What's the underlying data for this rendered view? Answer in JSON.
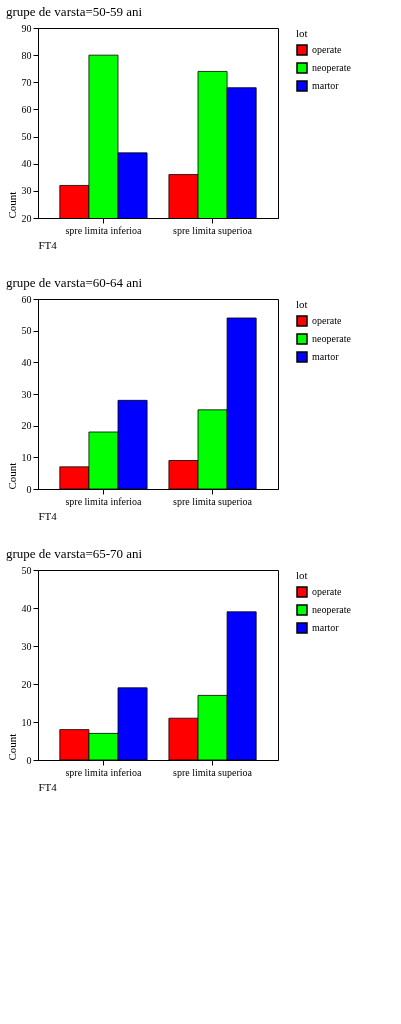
{
  "chart_data": [
    {
      "type": "bar",
      "title": "grupe de varsta=50-59 ani",
      "xlabel": "FT4",
      "ylabel": "Count",
      "legend_title": "lot",
      "legend": "right",
      "grid": false,
      "categories": [
        "spre limita inferioa",
        "spre limita superioa"
      ],
      "series": [
        {
          "name": "operate",
          "color": "#ff0000",
          "values": [
            32,
            36
          ]
        },
        {
          "name": "neoperate",
          "color": "#00ff00",
          "values": [
            80,
            74
          ]
        },
        {
          "name": "martor",
          "color": "#0000ff",
          "values": [
            44,
            68
          ]
        }
      ],
      "ylim": [
        20,
        90
      ],
      "yticks": [
        20,
        30,
        40,
        50,
        60,
        70,
        80,
        90
      ]
    },
    {
      "type": "bar",
      "title": "grupe de varsta=60-64 ani",
      "xlabel": "FT4",
      "ylabel": "Count",
      "legend_title": "lot",
      "legend": "right",
      "grid": false,
      "categories": [
        "spre limita inferioa",
        "spre limita superioa"
      ],
      "series": [
        {
          "name": "operate",
          "color": "#ff0000",
          "values": [
            7,
            9
          ]
        },
        {
          "name": "neoperate",
          "color": "#00ff00",
          "values": [
            18,
            25
          ]
        },
        {
          "name": "martor",
          "color": "#0000ff",
          "values": [
            28,
            54
          ]
        }
      ],
      "ylim": [
        0,
        60
      ],
      "yticks": [
        0,
        10,
        20,
        30,
        40,
        50,
        60
      ]
    },
    {
      "type": "bar",
      "title": "grupe de varsta=65-70 ani",
      "xlabel": "FT4",
      "ylabel": "Count",
      "legend_title": "lot",
      "legend": "right",
      "grid": false,
      "categories": [
        "spre limita inferioa",
        "spre limita superioa"
      ],
      "series": [
        {
          "name": "operate",
          "color": "#ff0000",
          "values": [
            8,
            11
          ]
        },
        {
          "name": "neoperate",
          "color": "#00ff00",
          "values": [
            7,
            17
          ]
        },
        {
          "name": "martor",
          "color": "#0000ff",
          "values": [
            19,
            39
          ]
        }
      ],
      "ylim": [
        0,
        50
      ],
      "yticks": [
        0,
        10,
        20,
        30,
        40,
        50
      ]
    }
  ]
}
